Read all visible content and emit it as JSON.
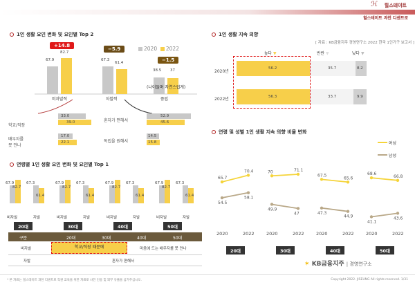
{
  "header": {
    "brand": "힐스테이트",
    "subtitle": "힐스테이트 과천 디센트로"
  },
  "colors": {
    "c2020": "#c8c8c8",
    "c2022": "#f7cf4a",
    "red": "#e01919",
    "brown": "#6b4c17",
    "accent": "#b02020"
  },
  "section1": {
    "title": "1인 생활 요인 변화 및 요인별 Top 2",
    "legend": [
      "2020",
      "2022"
    ],
    "groups": [
      {
        "label": "비자발적",
        "v2020": "67.9",
        "v2022": "82.7",
        "change": "+14.8"
      },
      {
        "label": "자발적",
        "v2020": "67.3",
        "v2022": "61.4",
        "change": "−5.9"
      },
      {
        "label": "중립",
        "v2020": "38.5",
        "v2022": "37",
        "change": "−1.5",
        "note": "(나이들며 자연스럽게)"
      }
    ],
    "top2_left": [
      {
        "label": "학교/직장",
        "v2020": "33.0",
        "v2022": "39.0"
      },
      {
        "label": "배우자를\n못 만나",
        "v2020": "17.0",
        "v2022": "22.1"
      }
    ],
    "top2_right": [
      {
        "label": "혼자가 편해서",
        "v2020": "52.9",
        "v2022": "45.6"
      },
      {
        "label": "독립을 원해서",
        "v2020": "14.5",
        "v2022": "15.8"
      }
    ]
  },
  "section2": {
    "title": "연령별 1인 생활 요인 변화 및 요인별 Top 1",
    "ages": [
      "20대",
      "30대",
      "40대",
      "50대"
    ],
    "values": {
      "inv2020": "67.9",
      "inv2022": "82.7",
      "vol2020": "67.3",
      "vol2022": "61.4"
    },
    "bar_labels": [
      "비자발",
      "자발"
    ],
    "table": {
      "head": [
        "구분",
        "20대",
        "30대",
        "40대",
        "50대"
      ],
      "row1_label": "비자발",
      "row1_a": "학교/직장 때문에",
      "row1_b": "마음에 드는 배우자를 못 만나",
      "row2_label": "자발",
      "row2_a": "혼자가 편해서"
    }
  },
  "section3": {
    "title": "1인 생활 지속 의향",
    "source": "[ 자료 : KB금융지주 경영연구소 2022 한국 1인가구 보고서 ]",
    "legend": [
      "높다",
      "반반",
      "낮다"
    ],
    "rows": [
      {
        "year": "2020년",
        "high": "56.2",
        "mid": "35.7",
        "low": "8.2"
      },
      {
        "year": "2022년",
        "high": "56.3",
        "mid": "33.7",
        "low": "9.9"
      }
    ]
  },
  "section4": {
    "title": "연령 및 성별 1인 생활 지속 의향 비율 변화",
    "legend": [
      "여성",
      "남성"
    ],
    "ages": [
      "20대",
      "30대",
      "40대",
      "50대"
    ],
    "years": [
      "2020",
      "2022"
    ],
    "female": [
      [
        65.7,
        70.4
      ],
      [
        70,
        71.1
      ],
      [
        67.5,
        65.6
      ],
      [
        68.6,
        66.8
      ]
    ],
    "male": [
      [
        54.5,
        58.1
      ],
      [
        49.9,
        47
      ],
      [
        47.3,
        44.9
      ],
      [
        41.1,
        43.6
      ]
    ],
    "female_labels": [
      [
        "65.7",
        "70.4"
      ],
      [
        "70",
        "71.1"
      ],
      [
        "67.5",
        "65.6"
      ],
      [
        "68.6",
        "66.8"
      ]
    ],
    "male_labels": [
      [
        "54.5",
        "58.1"
      ],
      [
        "49.9",
        "47"
      ],
      [
        "47.3",
        "44.9"
      ],
      [
        "41.1",
        "43.6"
      ]
    ]
  },
  "footer": {
    "logo": "KB금융지주",
    "logo_sub": "경영연구소",
    "note": "* 본 자료는 힐스테이트 과천 디센트로 직원 교육을 위한 자료로 사전 인용 및 외부 유출을 삼가주십시오.",
    "copyright": "Copyright 2022. JISEUNG All rights reserved. 1/31"
  }
}
